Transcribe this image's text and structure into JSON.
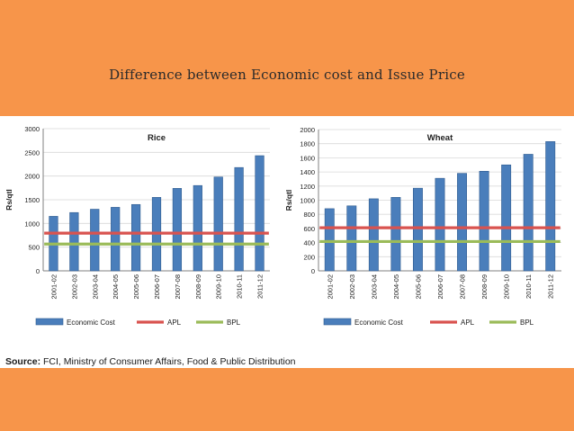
{
  "slide": {
    "title": "Difference between Economic cost and Issue Price",
    "source_label": "Source:",
    "source_text": " FCI, Ministry of Consumer Affairs, Food & Public Distribution",
    "colors": {
      "background": "#f7954a",
      "bar": "#4a7ebb",
      "apl": "#d9534f",
      "bpl": "#9bbb59"
    }
  },
  "chart_data": [
    {
      "type": "bar",
      "title": "Rice",
      "ylabel": "Rs/qtl",
      "xlabel": "",
      "ylim": [
        0,
        3000
      ],
      "yticks": [
        0,
        500,
        1000,
        1500,
        2000,
        2500,
        3000
      ],
      "categories": [
        "2001-02",
        "2002-03",
        "2003-04",
        "2004-05",
        "2005-06",
        "2006-07",
        "2007-08",
        "2008-09",
        "2009-10",
        "2010-11",
        "2011-12"
      ],
      "series": [
        {
          "name": "Economic Cost",
          "kind": "bar",
          "values": [
            1150,
            1230,
            1300,
            1340,
            1400,
            1550,
            1740,
            1800,
            1980,
            2180,
            2430
          ]
        },
        {
          "name": "APL",
          "kind": "line",
          "values": [
            795,
            795,
            795,
            795,
            795,
            795,
            795,
            795,
            795,
            795,
            795
          ]
        },
        {
          "name": "BPL",
          "kind": "line",
          "values": [
            565,
            565,
            565,
            565,
            565,
            565,
            565,
            565,
            565,
            565,
            565
          ]
        }
      ],
      "grid": true,
      "legend": "bottom"
    },
    {
      "type": "bar",
      "title": "Wheat",
      "ylabel": "Rs/qtl",
      "xlabel": "",
      "ylim": [
        0,
        2000
      ],
      "yticks": [
        0,
        200,
        400,
        600,
        800,
        1000,
        1200,
        1400,
        1600,
        1800,
        2000
      ],
      "categories": [
        "2001-02",
        "2002-03",
        "2003-04",
        "2004-05",
        "2005-06",
        "2006-07",
        "2007-08",
        "2008-09",
        "2009-10",
        "2010-11",
        "2011-12"
      ],
      "series": [
        {
          "name": "Economic Cost",
          "kind": "bar",
          "values": [
            880,
            920,
            1020,
            1040,
            1170,
            1310,
            1380,
            1410,
            1500,
            1650,
            1830
          ]
        },
        {
          "name": "APL",
          "kind": "line",
          "values": [
            610,
            610,
            610,
            610,
            610,
            610,
            610,
            610,
            610,
            610,
            610
          ]
        },
        {
          "name": "BPL",
          "kind": "line",
          "values": [
            415,
            415,
            415,
            415,
            415,
            415,
            415,
            415,
            415,
            415,
            415
          ]
        }
      ],
      "grid": true,
      "legend": "bottom"
    }
  ]
}
